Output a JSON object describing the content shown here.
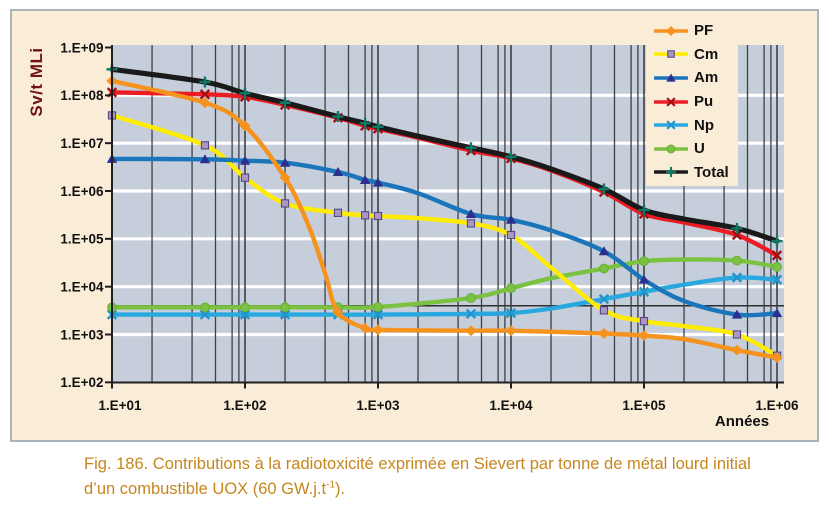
{
  "page": {
    "background": "#FFFFFF"
  },
  "frame": {
    "background": "#FAEDD8",
    "border_color": "#AAB2BA"
  },
  "figure": {
    "caption_line1": "Fig. 186. Contributions à la radiotoxicité exprimée en Sievert par tonne de métal lourd initial",
    "caption_line2_pre": "d’un combustible UOX (60 GW.j.t",
    "caption_sup": "-1",
    "caption_line2_post": ").",
    "caption_color": "#C6861E"
  },
  "chart_data": {
    "type": "line",
    "title": "",
    "xlabel": "Années",
    "ylabel": "Sv/t MLi",
    "ylabel_color": "#6F1315",
    "x_scale": "log",
    "y_scale": "log",
    "xlim": [
      10,
      1000000
    ],
    "ylim": [
      100,
      1000000000
    ],
    "plot_bg": "#C5CEDA",
    "grid": {
      "h_major_color": "#FFFFFF",
      "v_color": "#3D4045",
      "v_minor_multipliers": [
        2,
        4,
        6,
        8,
        9
      ]
    },
    "x_ticks": [
      {
        "v": 10,
        "label": "1.E+01"
      },
      {
        "v": 100,
        "label": "1.E+02"
      },
      {
        "v": 1000,
        "label": "1.E+03"
      },
      {
        "v": 10000,
        "label": "1.E+04"
      },
      {
        "v": 100000,
        "label": "1.E+05"
      },
      {
        "v": 1000000,
        "label": "1.E+06"
      }
    ],
    "y_ticks": [
      {
        "v": 1000000000.0,
        "label": "1.E+09"
      },
      {
        "v": 100000000.0,
        "label": "1.E+08"
      },
      {
        "v": 10000000.0,
        "label": "1.E+07"
      },
      {
        "v": 1000000.0,
        "label": "1.E+06"
      },
      {
        "v": 100000.0,
        "label": "1.E+05"
      },
      {
        "v": 10000.0,
        "label": "1.E+04"
      },
      {
        "v": 1000.0,
        "label": "1.E+03"
      },
      {
        "v": 100.0,
        "label": "1.E+02"
      }
    ],
    "reference_line": {
      "y": 4000,
      "color": "#2F2F2F"
    },
    "marker_x": [
      10,
      50,
      100,
      200,
      500,
      800,
      1000,
      5000,
      10000,
      50000,
      100000,
      500000,
      1000000
    ],
    "legend_position": "top-right",
    "legend": {
      "background": "#FAEDD8",
      "text_color": "#111111"
    },
    "series": [
      {
        "name": "PF",
        "color": "#F6921E",
        "marker": "diamond",
        "marker_fill": "#F6921E",
        "points": [
          [
            10,
            200000000.0
          ],
          [
            50,
            70000000.0
          ],
          [
            100,
            23000000.0
          ],
          [
            200,
            1900000.0
          ],
          [
            300,
            190000.0
          ],
          [
            400,
            19000.0
          ],
          [
            500,
            2900
          ],
          [
            800,
            1350
          ],
          [
            1000,
            1250
          ],
          [
            5000,
            1200
          ],
          [
            10000,
            1200
          ],
          [
            50000,
            1050
          ],
          [
            100000,
            950
          ],
          [
            200000,
            800
          ],
          [
            500000,
            470
          ],
          [
            1000000,
            330
          ]
        ]
      },
      {
        "name": "Cm",
        "color": "#FFEC00",
        "marker": "square",
        "marker_fill": "#A898C0",
        "marker_stroke": "#4F3E82",
        "points": [
          [
            10,
            38000000.0
          ],
          [
            50,
            9000000.0
          ],
          [
            100,
            1900000.0
          ],
          [
            200,
            550000.0
          ],
          [
            500,
            350000.0
          ],
          [
            800,
            310000.0
          ],
          [
            1000,
            300000.0
          ],
          [
            2000,
            270000.0
          ],
          [
            5000,
            210000.0
          ],
          [
            10000,
            120000.0
          ],
          [
            20000,
            25000.0
          ],
          [
            50000,
            3200
          ],
          [
            100000,
            1900
          ],
          [
            200000,
            1500
          ],
          [
            500000,
            1000
          ],
          [
            1000000,
            360
          ]
        ]
      },
      {
        "name": "Am",
        "color": "#1B75BB",
        "marker": "triangle",
        "marker_fill": "#2C2F8F",
        "points": [
          [
            10,
            4700000.0
          ],
          [
            50,
            4600000.0
          ],
          [
            100,
            4300000.0
          ],
          [
            200,
            3900000.0
          ],
          [
            500,
            2500000.0
          ],
          [
            800,
            1700000.0
          ],
          [
            1000,
            1500000.0
          ],
          [
            2000,
            900000.0
          ],
          [
            5000,
            330000.0
          ],
          [
            10000,
            250000.0
          ],
          [
            20000,
            150000.0
          ],
          [
            50000,
            55000.0
          ],
          [
            100000,
            14000.0
          ],
          [
            200000,
            5000
          ],
          [
            500000,
            2600
          ],
          [
            1000000,
            2800
          ]
        ]
      },
      {
        "name": "Pu",
        "color": "#EC1C24",
        "marker": "x",
        "marker_stroke": "#A50D12",
        "points": [
          [
            10,
            115000000.0
          ],
          [
            50,
            105000000.0
          ],
          [
            100,
            93000000.0
          ],
          [
            200,
            63000000.0
          ],
          [
            500,
            34000000.0
          ],
          [
            800,
            23000000.0
          ],
          [
            1000,
            20000000.0
          ],
          [
            2000,
            13000000.0
          ],
          [
            5000,
            7000000.0
          ],
          [
            10000,
            4800000.0
          ],
          [
            20000,
            2700000.0
          ],
          [
            50000,
            950000.0
          ],
          [
            100000,
            330000.0
          ],
          [
            200000,
            220000.0
          ],
          [
            500000,
            120000.0
          ],
          [
            1000000,
            45000.0
          ]
        ]
      },
      {
        "name": "Np",
        "color": "#29A8E0",
        "marker": "x",
        "marker_stroke": "#1F95CC",
        "points": [
          [
            10,
            2600
          ],
          [
            50,
            2600
          ],
          [
            100,
            2600
          ],
          [
            200,
            2600
          ],
          [
            500,
            2600
          ],
          [
            1000,
            2600
          ],
          [
            5000,
            2700
          ],
          [
            10000,
            2800
          ],
          [
            20000,
            3500
          ],
          [
            50000,
            5500
          ],
          [
            100000,
            7800
          ],
          [
            200000,
            11000
          ],
          [
            500000,
            15500
          ],
          [
            1000000,
            14000
          ]
        ]
      },
      {
        "name": "U",
        "color": "#7CC242",
        "marker": "circle",
        "marker_fill": "#7CC242",
        "marker_stroke": "#69AD34",
        "points": [
          [
            10,
            3700
          ],
          [
            50,
            3700
          ],
          [
            100,
            3700
          ],
          [
            200,
            3700
          ],
          [
            500,
            3700
          ],
          [
            1000,
            3750
          ],
          [
            5000,
            5800
          ],
          [
            10000,
            9300
          ],
          [
            20000,
            15000
          ],
          [
            50000,
            24000
          ],
          [
            100000,
            34000
          ],
          [
            200000,
            37000
          ],
          [
            500000,
            35000
          ],
          [
            1000000,
            26000
          ]
        ]
      },
      {
        "name": "Total",
        "color": "#1A1A1A",
        "marker": "plus",
        "marker_stroke": "#0D7A68",
        "points": [
          [
            10,
            350000000.0
          ],
          [
            50,
            190000000.0
          ],
          [
            100,
            110000000.0
          ],
          [
            200,
            70000000.0
          ],
          [
            500,
            36000000.0
          ],
          [
            800,
            26000000.0
          ],
          [
            1000,
            22000000.0
          ],
          [
            2000,
            14000000.0
          ],
          [
            5000,
            8000000.0
          ],
          [
            10000,
            5200000.0
          ],
          [
            20000,
            2900000.0
          ],
          [
            50000,
            1100000.0
          ],
          [
            100000,
            400000.0
          ],
          [
            200000,
            260000.0
          ],
          [
            500000,
            165000.0
          ],
          [
            1000000,
            90000.0
          ]
        ]
      }
    ]
  }
}
